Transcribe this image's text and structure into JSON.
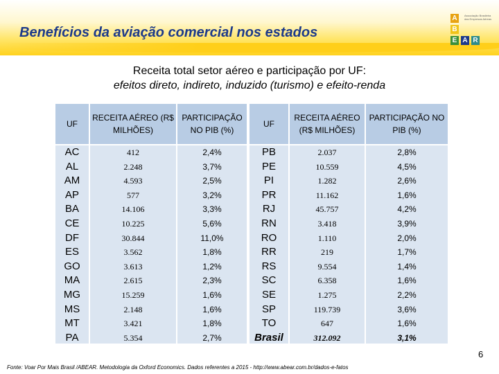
{
  "title": "Benefícios da aviação comercial nos estados",
  "logo": {
    "letters": [
      "A",
      "B",
      "E",
      "A",
      "R"
    ],
    "text": "Associação Brasileira das Empresas Aéreas",
    "colors": {
      "a1": "#e8a312",
      "b": "#f0c419",
      "e": "#3a8f3a",
      "a2": "#1d3a8a",
      "r": "#2e8b8b"
    }
  },
  "subtitle": {
    "line1": "Receita total setor aéreo e participação por UF:",
    "line2": "efeitos direto, indireto, induzido (turismo) e efeito-renda"
  },
  "table": {
    "headers": {
      "uf": "UF",
      "receita": "RECEITA AÉREO (R$ MILHÕES)",
      "participacao": "PARTICIPAÇÃO NO PIB (%)"
    },
    "left": {
      "uf": [
        "AC",
        "AL",
        "AM",
        "AP",
        "BA",
        "CE",
        "DF",
        "ES",
        "GO",
        "MA",
        "MG",
        "MS",
        "MT",
        "PA"
      ],
      "receita": [
        "412",
        "2.248",
        "4.593",
        "577",
        "14.106",
        "10.225",
        "30.844",
        "3.562",
        "3.613",
        "2.615",
        "15.259",
        "2.148",
        "3.421",
        "5.354"
      ],
      "participacao": [
        "2,4%",
        "3,7%",
        "2,5%",
        "3,2%",
        "3,3%",
        "5,6%",
        "11,0%",
        "1,8%",
        "1,2%",
        "2,3%",
        "1,6%",
        "1,6%",
        "1,8%",
        "2,7%"
      ]
    },
    "right": {
      "uf": [
        "PB",
        "PE",
        "PI",
        "PR",
        "RJ",
        "RN",
        "RO",
        "RR",
        "RS",
        "SC",
        "SE",
        "SP",
        "TO"
      ],
      "receita": [
        "2.037",
        "10.559",
        "1.282",
        "11.162",
        "45.757",
        "3.418",
        "1.110",
        "219",
        "9.554",
        "6.358",
        "1.275",
        "119.739",
        "647"
      ],
      "participacao": [
        "2,8%",
        "4,5%",
        "2,6%",
        "1,6%",
        "4,2%",
        "3,9%",
        "2,0%",
        "1,7%",
        "1,4%",
        "1,6%",
        "2,2%",
        "3,6%",
        "1,6%"
      ]
    },
    "total": {
      "uf": "Brasil",
      "receita": "312.092",
      "participacao": "3,1%"
    }
  },
  "page_number": "6",
  "footer": "Fonte: Voar Por Mais Brasil /ABEAR. Metodologia da Oxford Economics. Dados referentes a 2015 - http://www.abear.com.br/dados-e-fatos"
}
